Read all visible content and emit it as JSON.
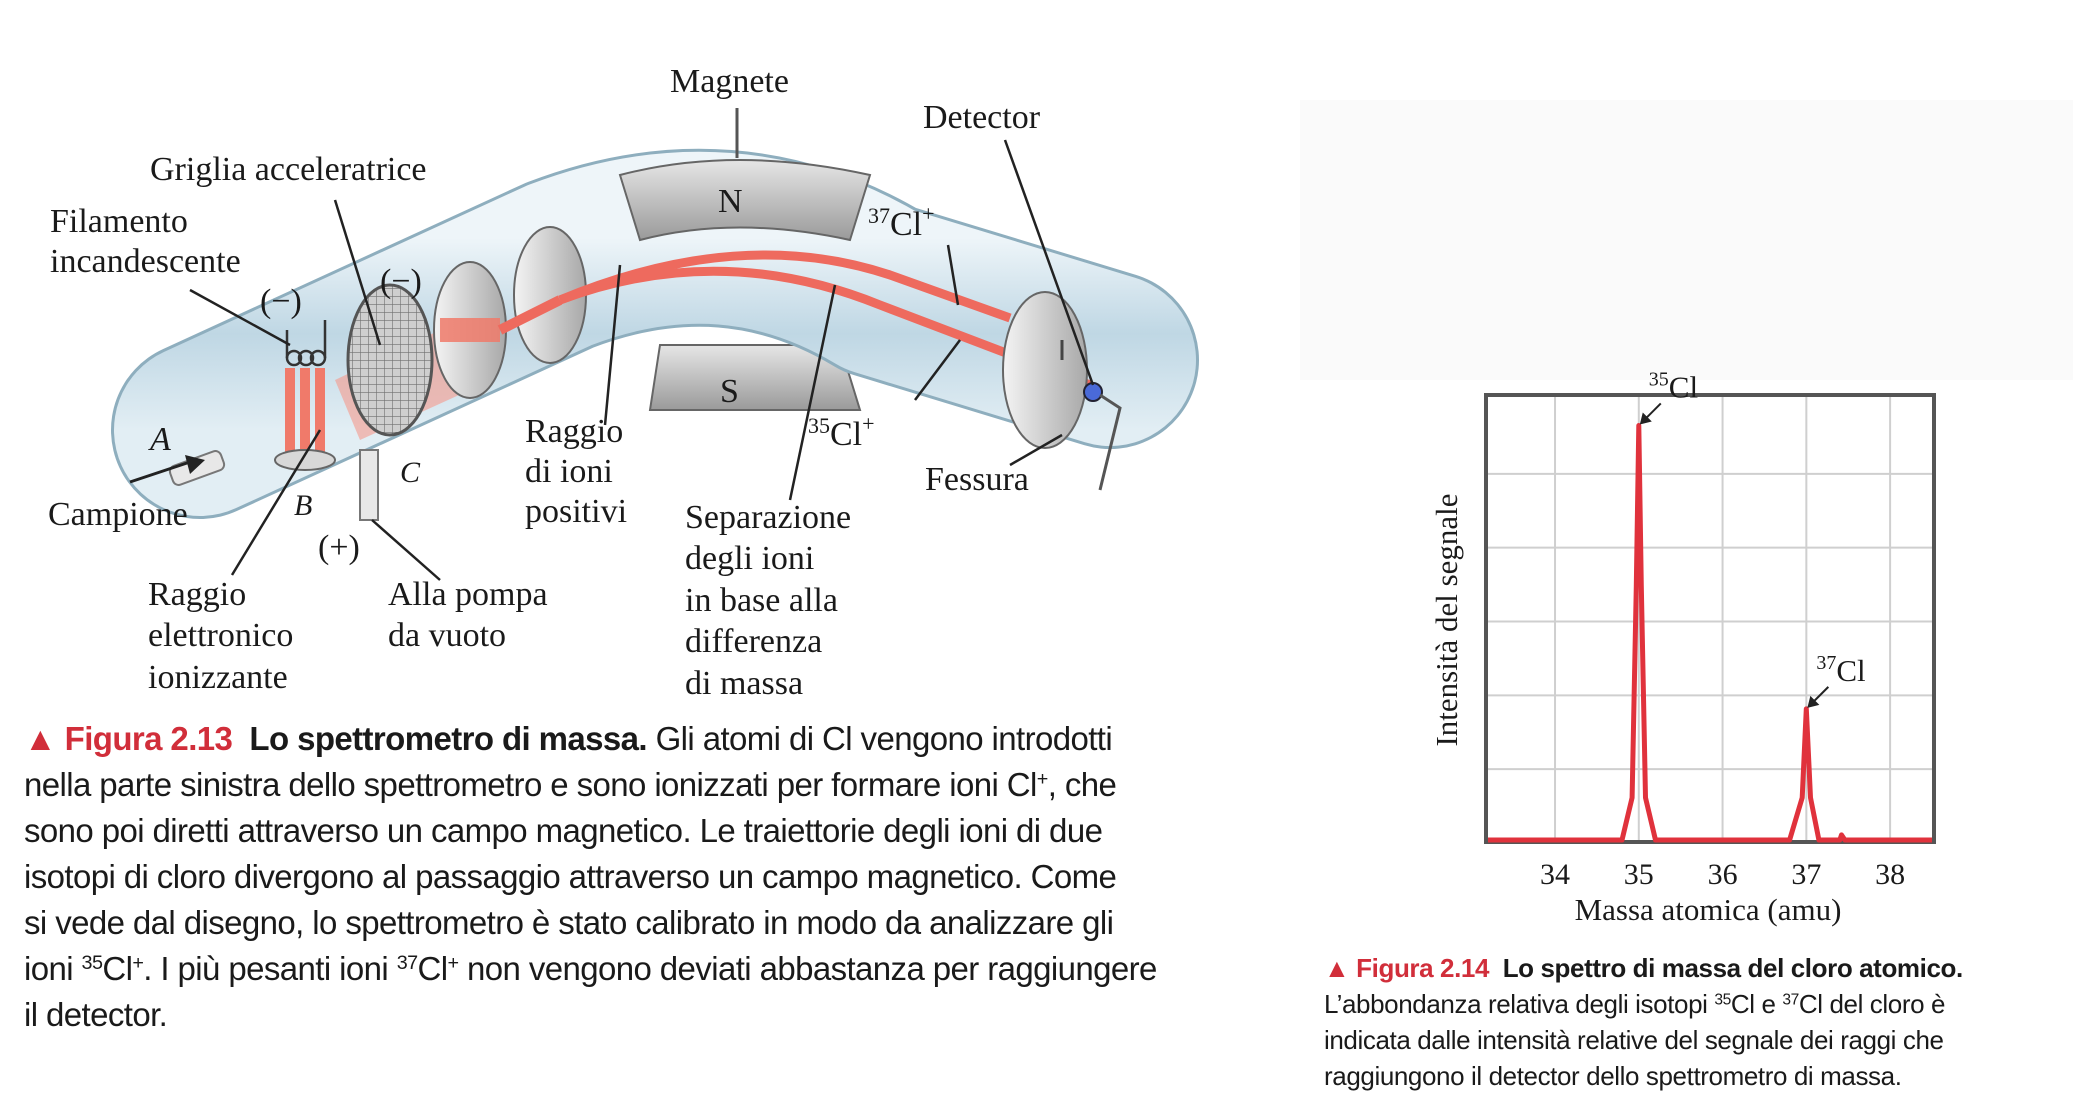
{
  "diagram": {
    "labels": {
      "magnet": "Magnete",
      "detector": "Detector",
      "grid": "Griglia acceleratrice",
      "filament_1": "Filamento",
      "filament_2": "incandescente",
      "minus_1": "(−)",
      "minus_2": "(−)",
      "plus": "(+)",
      "north": "N",
      "south": "S",
      "cl37_mass": "37",
      "cl37_sym": "Cl",
      "cl35_mass": "35",
      "cl35_sym": "Cl",
      "charge": "+",
      "point_a": "A",
      "point_b": "B",
      "point_c": "C",
      "sample": "Campione",
      "positive_beam_1": "Raggio",
      "positive_beam_2": "di ioni",
      "positive_beam_3": "positivi",
      "separation_1": "Separazione",
      "separation_2": "degli ioni",
      "separation_3": "in base alla",
      "separation_4": "differenza",
      "separation_5": "di massa",
      "slit": "Fessura",
      "electron_beam_1": "Raggio",
      "electron_beam_2": "elettronico",
      "electron_beam_3": "ionizzante",
      "vacuum_1": "Alla pompa",
      "vacuum_2": "da vuoto"
    },
    "colors": {
      "tube": "#c9dfea",
      "beam": "#ee6a5e",
      "magnet": "#b9b9b9"
    }
  },
  "caption_13": {
    "figure": "▲ Figura 2.13",
    "title": "Lo spettrometro di massa.",
    "line1": "Gli atomi di Cl vengono introdotti",
    "line2a": "nella parte sinistra dello spettrometro e sono ionizzati per formare ioni Cl",
    "line2_sup": "+",
    "line2b": ", che",
    "line3": "sono poi diretti attraverso un campo magnetico. Le traiettorie degli ioni di due",
    "line4": "isotopi di cloro divergono al passaggio attraverso un campo magnetico. Come",
    "line5": "si vede dal disegno, lo spettrometro è stato calibrato in modo da analizzare gli",
    "line6a": "ioni ",
    "line6_mass1": "35",
    "line6_sym1": "Cl",
    "line6_chg1": "+",
    "line6b": ". I più pesanti ioni ",
    "line6_mass2": "37",
    "line6_sym2": "Cl",
    "line6_chg2": "+",
    "line6c": " non vengono deviati abbastanza per raggiungere",
    "line7": "il detector."
  },
  "caption_14": {
    "figure": "▲ Figura 2.14",
    "title": "Lo spettro di massa del cloro atomico.",
    "line1a": "L’abbondanza relativa degli isotopi ",
    "line1_mass1": "35",
    "line1_sym1": "Cl e ",
    "line1_mass2": "37",
    "line1_sym2": "Cl  del cloro è",
    "line2": "indicata dalle intensità relative del segnale dei raggi che",
    "line3": "raggiungono il detector dello spettrometro di massa."
  },
  "chart_data": {
    "type": "line",
    "title": "",
    "xlabel": "Massa atomica (amu)",
    "ylabel": "Intensità del segnale",
    "xlim": [
      33.2,
      38.5
    ],
    "ylim": [
      0,
      1.0
    ],
    "xticks": [
      "34",
      "35",
      "36",
      "37",
      "38"
    ],
    "grid": true,
    "series": [
      {
        "color": "#e0323c",
        "x": [
          33.2,
          34.8,
          34.92,
          34.97,
          35.0,
          35.03,
          35.08,
          35.2,
          36.8,
          36.95,
          37.0,
          37.05,
          37.15,
          37.4,
          37.42,
          37.46,
          38.5
        ],
        "y": [
          0.0,
          0.0,
          0.1,
          0.6,
          0.98,
          0.6,
          0.1,
          0.0,
          0.0,
          0.1,
          0.31,
          0.1,
          0.0,
          0.0,
          0.012,
          0.0,
          0.0
        ]
      }
    ],
    "annotations": [
      {
        "mass": "35",
        "symbol": "Cl",
        "x": 35.0,
        "y": 0.98
      },
      {
        "mass": "37",
        "symbol": "Cl",
        "x": 37.0,
        "y": 0.31
      }
    ]
  }
}
